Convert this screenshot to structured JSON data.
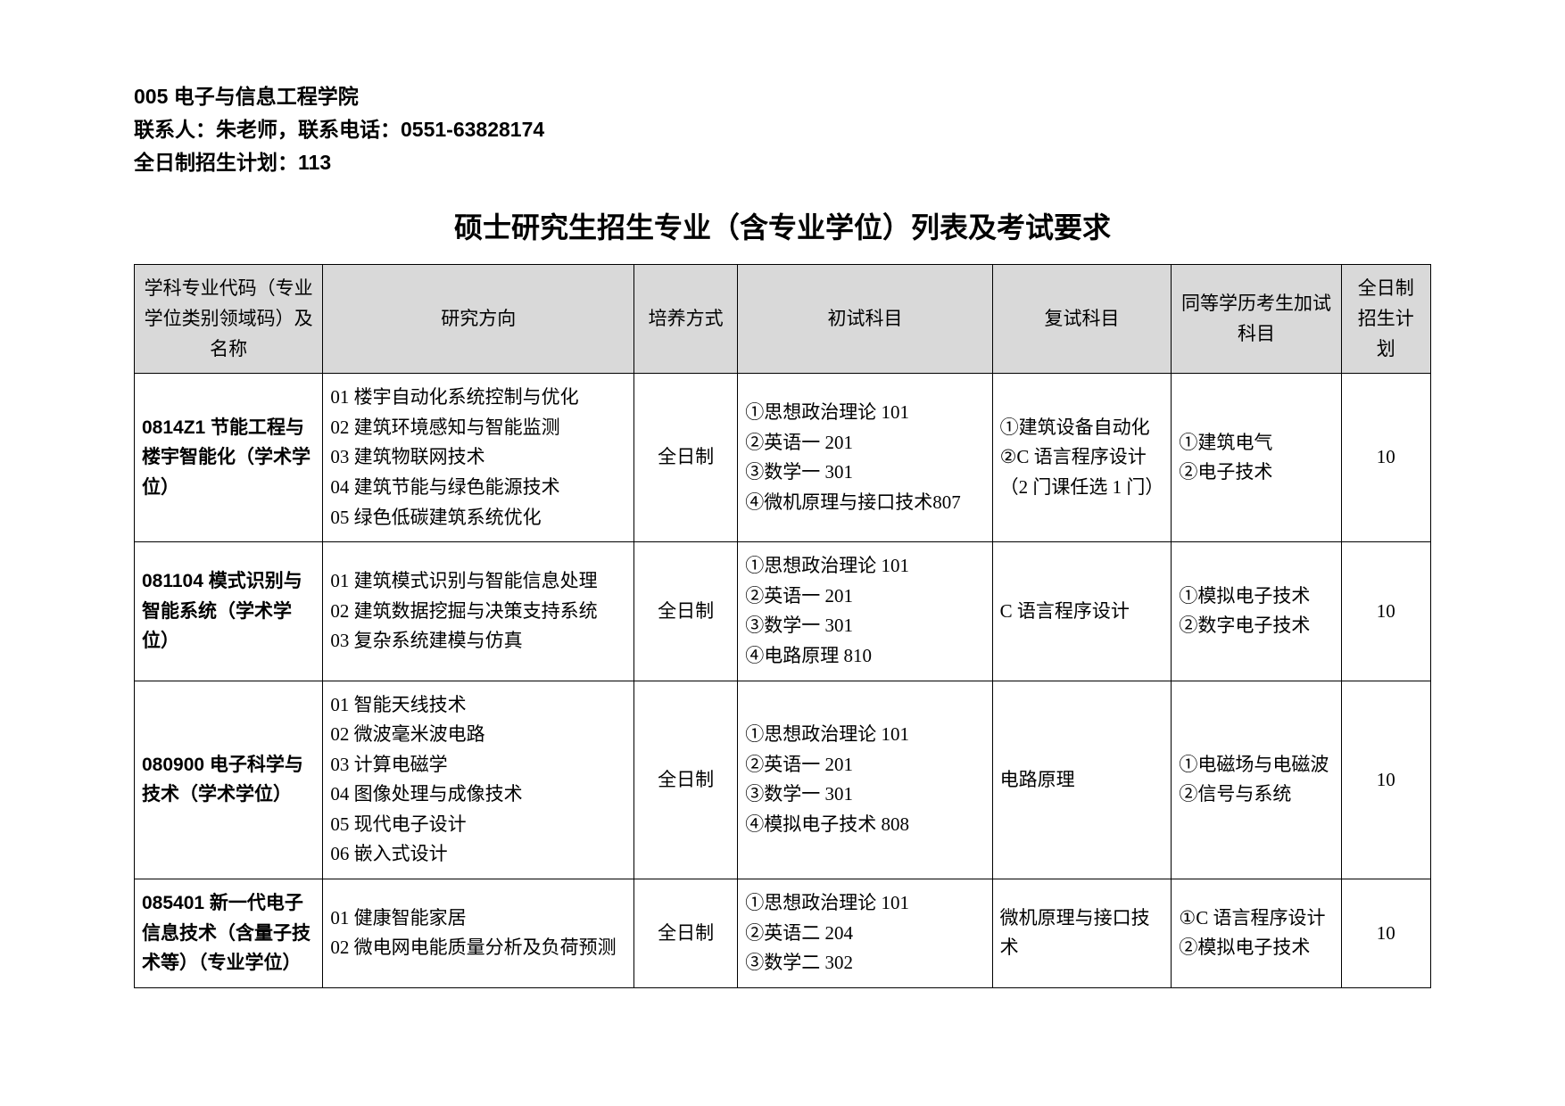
{
  "header": {
    "dept": "005 电子与信息工程学院",
    "contact": "联系人：朱老师，联系电话：0551-63828174",
    "plan": "全日制招生计划：113"
  },
  "title": "硕士研究生招生专业（含专业学位）列表及考试要求",
  "columns": {
    "code": "学科专业代码（专业学位类别领域码）及名称",
    "direction": "研究方向",
    "mode": "培养方式",
    "prelim": "初试科目",
    "retest": "复试科目",
    "equiv": "同等学历考生加试科目",
    "plan": "全日制招生计划"
  },
  "rows": [
    {
      "code": "0814Z1 节能工程与楼宇智能化（学术学位）",
      "directions": [
        "01 楼宇自动化系统控制与优化",
        "02 建筑环境感知与智能监测",
        "03 建筑物联网技术",
        "04 建筑节能与绿色能源技术",
        "05 绿色低碳建筑系统优化"
      ],
      "mode": "全日制",
      "prelim": [
        "①思想政治理论 101",
        "②英语一 201",
        "③数学一 301",
        "④微机原理与接口技术807"
      ],
      "retest": [
        "①建筑设备自动化",
        "②C 语言程序设计",
        "（2 门课任选 1 门）"
      ],
      "equiv": [
        "①建筑电气",
        "②电子技术"
      ],
      "plan": "10"
    },
    {
      "code": "081104 模式识别与智能系统（学术学位）",
      "directions": [
        "01 建筑模式识别与智能信息处理",
        "02 建筑数据挖掘与决策支持系统",
        "03 复杂系统建模与仿真"
      ],
      "mode": "全日制",
      "prelim": [
        "①思想政治理论 101",
        "②英语一 201",
        "③数学一 301",
        "④电路原理 810"
      ],
      "retest": [
        "C 语言程序设计"
      ],
      "equiv": [
        "①模拟电子技术",
        "②数字电子技术"
      ],
      "plan": "10"
    },
    {
      "code": "080900 电子科学与技术（学术学位）",
      "directions": [
        "01 智能天线技术",
        "02 微波毫米波电路",
        "03 计算电磁学",
        "04 图像处理与成像技术",
        "05 现代电子设计",
        "06 嵌入式设计"
      ],
      "mode": "全日制",
      "prelim": [
        "①思想政治理论 101",
        "②英语一 201",
        "③数学一 301",
        "④模拟电子技术 808"
      ],
      "retest": [
        "电路原理"
      ],
      "equiv": [
        "①电磁场与电磁波",
        "②信号与系统"
      ],
      "plan": "10"
    },
    {
      "code": "085401 新一代电子信息技术（含量子技术等）（专业学位）",
      "directions": [
        "01 健康智能家居",
        "02 微电网电能质量分析及负荷预测"
      ],
      "mode": "全日制",
      "prelim": [
        "①思想政治理论 101",
        "②英语二 204",
        "③数学二 302"
      ],
      "retest": [
        "微机原理与接口技术"
      ],
      "equiv": [
        "①C 语言程序设计",
        "②模拟电子技术"
      ],
      "plan": "10"
    }
  ]
}
